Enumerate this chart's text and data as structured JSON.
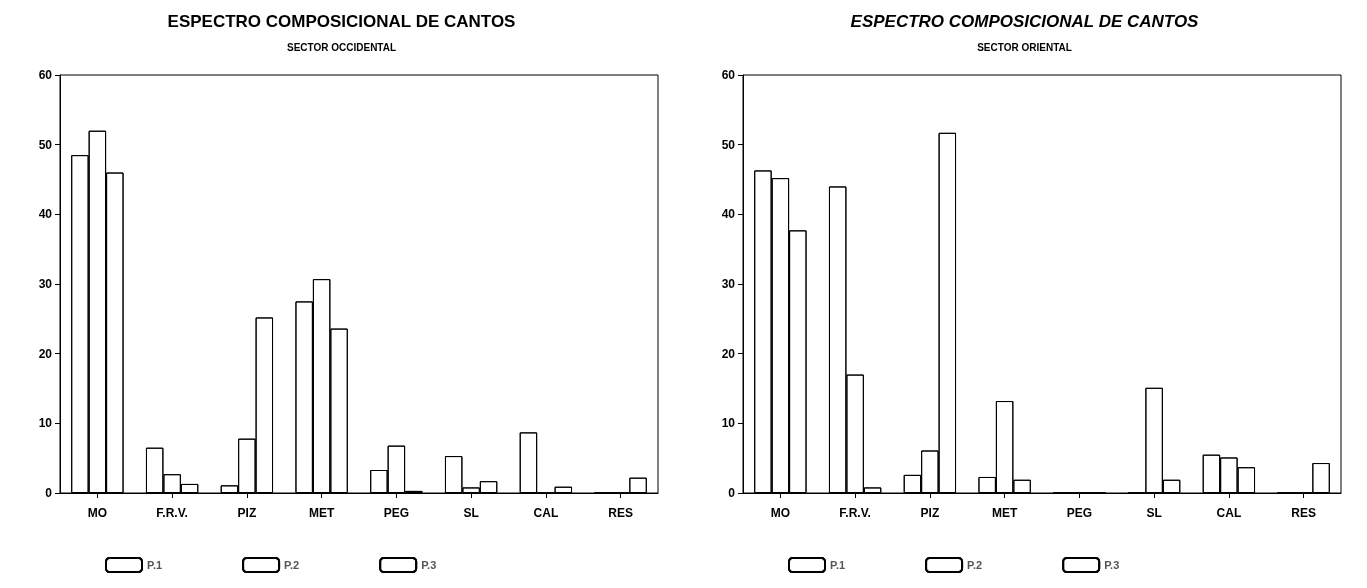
{
  "chart_data": [
    {
      "type": "bar",
      "title": "ESPECTRO COMPOSICIONAL DE CANTOS",
      "subtitle": "SECTOR OCCIDENTAL",
      "categories": [
        "MO",
        "F.R.V.",
        "PIZ",
        "MET",
        "PEG",
        "SL",
        "CAL",
        "RES"
      ],
      "series": [
        {
          "name": "P.1",
          "color": "#ffffff",
          "values": [
            48.5,
            6.5,
            1.1,
            27.5,
            3.3,
            5.3,
            8.7,
            0
          ]
        },
        {
          "name": "P.2",
          "color": "#ffffff",
          "values": [
            52,
            2.7,
            7.8,
            30.7,
            6.8,
            0.8,
            0,
            0
          ]
        },
        {
          "name": "P.3",
          "color": "#ffffff",
          "values": [
            46,
            1.3,
            25.2,
            23.6,
            0.3,
            1.7,
            0.9,
            2.2
          ]
        }
      ],
      "ylim": [
        0,
        60
      ],
      "yticks": [
        0,
        10,
        20,
        30,
        40,
        50,
        60
      ],
      "grid": false,
      "legend": "bottom"
    },
    {
      "type": "bar",
      "title": "ESPECTRO COMPOSICIONAL DE CANTOS",
      "subtitle": "SECTOR ORIENTAL",
      "categories": [
        "MO",
        "F.R.V.",
        "PIZ",
        "MET",
        "PEG",
        "SL",
        "CAL",
        "RES"
      ],
      "series": [
        {
          "name": "P.1",
          "color": "#ffffff",
          "values": [
            46.3,
            44,
            2.6,
            2.3,
            0,
            0,
            5.5,
            0
          ]
        },
        {
          "name": "P.2",
          "color": "#ffffff",
          "values": [
            45.2,
            17,
            6.1,
            13.2,
            0,
            15.1,
            5.1,
            0
          ]
        },
        {
          "name": "P.3",
          "color": "#ffffff",
          "values": [
            37.7,
            0.8,
            51.7,
            1.9,
            0,
            1.9,
            3.7,
            4.3
          ]
        }
      ],
      "ylim": [
        0,
        60
      ],
      "yticks": [
        0,
        10,
        20,
        30,
        40,
        50,
        60
      ],
      "grid": false,
      "legend": "bottom"
    }
  ]
}
